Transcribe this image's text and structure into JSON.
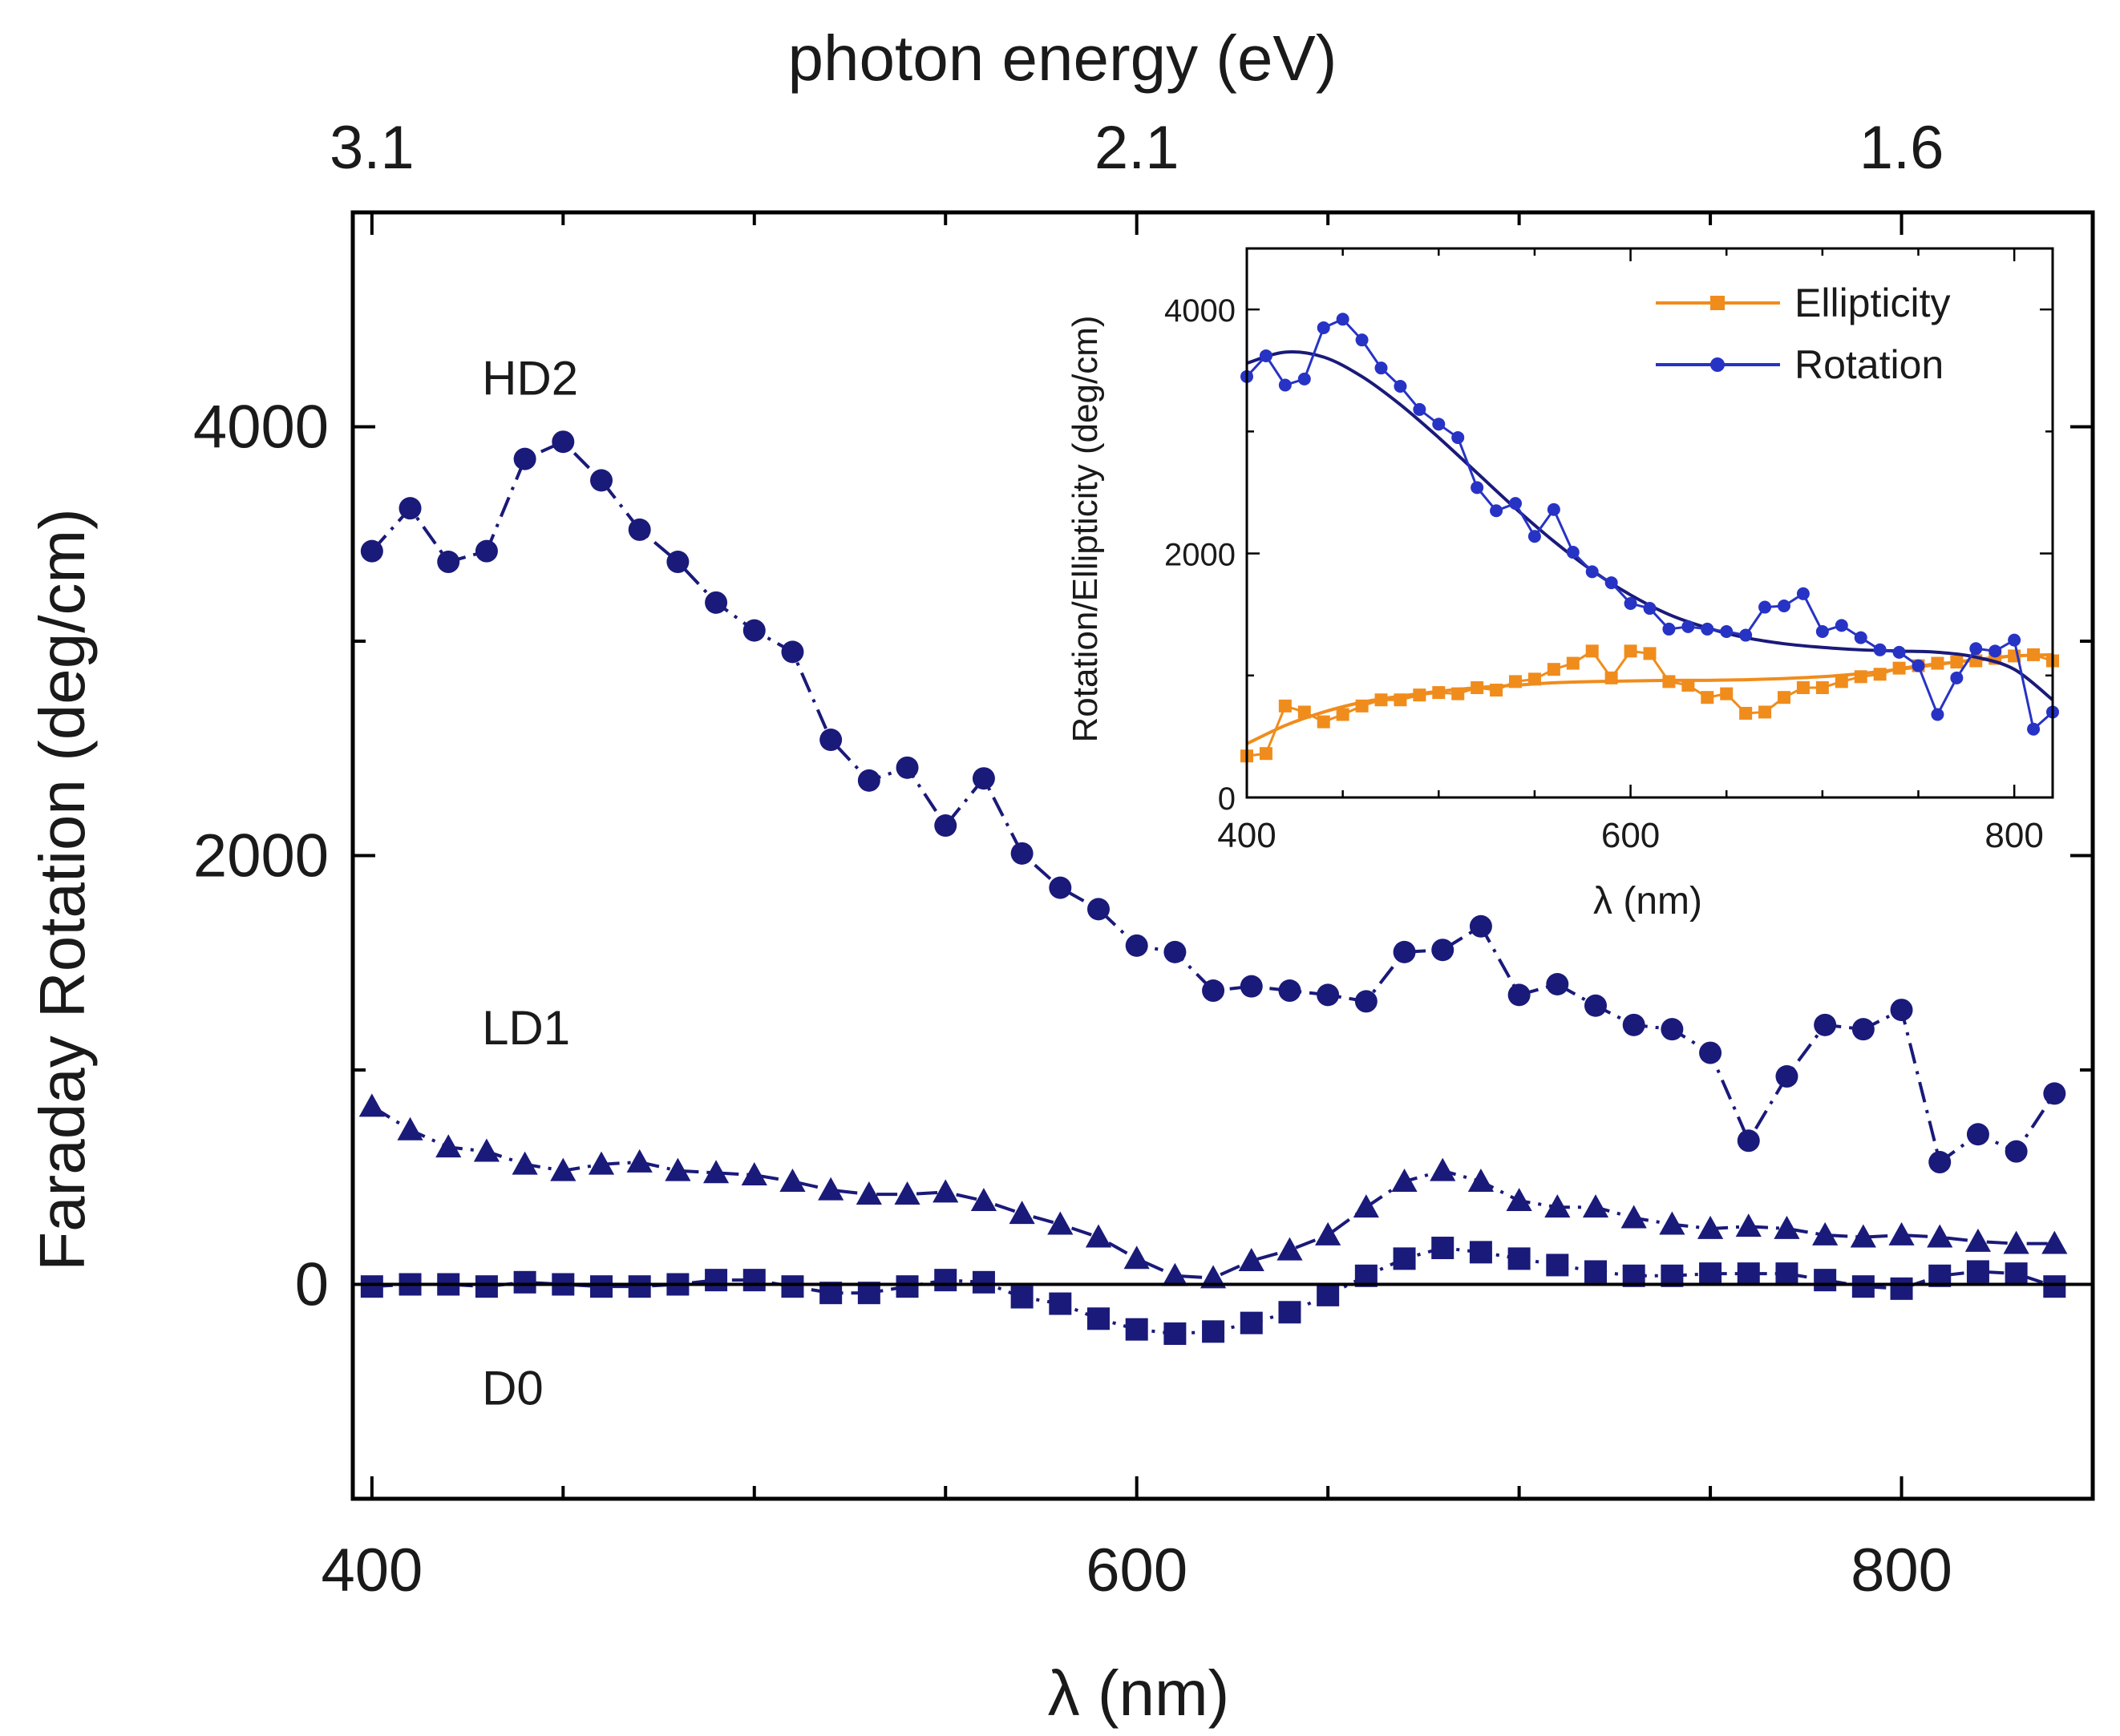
{
  "chart_data": [
    {
      "type": "scatter",
      "title": "",
      "xlabel": "λ (nm)",
      "ylabel": "Faraday Rotation (deg/cm)",
      "x2label": "photon energy (eV)",
      "xlim": [
        395,
        850
      ],
      "ylim": [
        -1000,
        5000
      ],
      "xticks": [
        400,
        600,
        800
      ],
      "yticks": [
        0,
        2000,
        4000
      ],
      "x2ticks": [
        {
          "label": "3.1",
          "x": 400
        },
        {
          "label": "2.1",
          "x": 600
        },
        {
          "label": "1.6",
          "x": 800
        }
      ],
      "zero_line": true,
      "x": [
        400,
        410,
        420,
        430,
        440,
        450,
        460,
        470,
        480,
        490,
        500,
        510,
        520,
        530,
        540,
        550,
        560,
        570,
        580,
        590,
        600,
        610,
        620,
        630,
        640,
        650,
        660,
        670,
        680,
        690,
        700,
        710,
        720,
        730,
        740,
        750,
        760,
        770,
        780,
        790,
        800,
        810,
        820,
        830,
        840
      ],
      "series": [
        {
          "name": "HD2",
          "marker": "circle",
          "line": "dash-dot",
          "color": "#1a1a7a",
          "label_x": 425,
          "label_y": 4150,
          "values": [
            3420,
            3620,
            3370,
            3420,
            3850,
            3930,
            3750,
            3520,
            3370,
            3180,
            3050,
            2950,
            2540,
            2350,
            2410,
            2140,
            2360,
            2010,
            1850,
            1750,
            1580,
            1550,
            1370,
            1390,
            1370,
            1350,
            1320,
            1550,
            1560,
            1670,
            1350,
            1400,
            1300,
            1210,
            1190,
            1080,
            670,
            970,
            1210,
            1190,
            1280,
            570,
            700,
            620,
            890
          ]
        },
        {
          "name": "LD1",
          "marker": "triangle",
          "line": "dash-dot",
          "color": "#1a1a7a",
          "label_x": 425,
          "label_y": 1120,
          "values": [
            830,
            720,
            640,
            620,
            560,
            530,
            560,
            570,
            530,
            520,
            510,
            480,
            440,
            420,
            420,
            430,
            390,
            330,
            280,
            220,
            120,
            40,
            30,
            110,
            160,
            230,
            360,
            480,
            530,
            480,
            390,
            360,
            360,
            310,
            280,
            260,
            270,
            260,
            230,
            220,
            230,
            220,
            200,
            190,
            190
          ]
        },
        {
          "name": "D0",
          "marker": "square",
          "line": "dash-dot",
          "color": "#1a1a7a",
          "label_x": 425,
          "label_y": -560,
          "values": [
            -10,
            0,
            0,
            -10,
            10,
            0,
            -10,
            -10,
            0,
            20,
            20,
            -10,
            -40,
            -40,
            -10,
            20,
            10,
            -60,
            -90,
            -160,
            -210,
            -230,
            -220,
            -180,
            -130,
            -50,
            40,
            120,
            170,
            150,
            120,
            90,
            60,
            40,
            40,
            50,
            50,
            50,
            20,
            -10,
            -20,
            40,
            60,
            50,
            -10
          ]
        }
      ]
    },
    {
      "type": "line",
      "title": "",
      "xlabel": "λ (nm)",
      "ylabel": "Rotation/Ellipticity (deg/cm)",
      "xlim": [
        400,
        820
      ],
      "ylim": [
        0,
        4500
      ],
      "xticks": [
        400,
        600,
        800
      ],
      "yticks": [
        0,
        2000,
        4000
      ],
      "legend": "top-right",
      "series": [
        {
          "name": "Ellipticity",
          "color": "#f08c1c",
          "marker": "square",
          "x": [
            400,
            410,
            420,
            430,
            440,
            450,
            460,
            470,
            480,
            490,
            500,
            510,
            520,
            530,
            540,
            550,
            560,
            570,
            580,
            590,
            600,
            610,
            620,
            630,
            640,
            650,
            660,
            670,
            680,
            690,
            700,
            710,
            720,
            730,
            740,
            750,
            760,
            770,
            780,
            790,
            800,
            810,
            820
          ],
          "values": [
            340,
            360,
            750,
            700,
            620,
            680,
            750,
            800,
            800,
            840,
            860,
            850,
            900,
            880,
            950,
            970,
            1050,
            1100,
            1200,
            980,
            1200,
            1180,
            950,
            920,
            820,
            850,
            690,
            700,
            820,
            900,
            900,
            950,
            990,
            1010,
            1060,
            1080,
            1100,
            1110,
            1120,
            1140,
            1160,
            1170,
            1120
          ],
          "fit_x": [
            400,
            420,
            440,
            460,
            480,
            500,
            520,
            540,
            560,
            580,
            600,
            620,
            640,
            660,
            680,
            700,
            720,
            740,
            760,
            780,
            800,
            820
          ],
          "fit_values": [
            440,
            590,
            700,
            780,
            830,
            870,
            900,
            920,
            940,
            950,
            955,
            960,
            960,
            965,
            975,
            990,
            1015,
            1050,
            1090,
            1130,
            1160,
            1170
          ]
        },
        {
          "name": "Rotation",
          "color": "#2733c4",
          "marker": "circle",
          "x": [
            400,
            410,
            420,
            430,
            440,
            450,
            460,
            470,
            480,
            490,
            500,
            510,
            520,
            530,
            540,
            550,
            560,
            570,
            580,
            590,
            600,
            610,
            620,
            630,
            640,
            650,
            660,
            670,
            680,
            690,
            700,
            710,
            720,
            730,
            740,
            750,
            760,
            770,
            780,
            790,
            800,
            810,
            820
          ],
          "values": [
            3450,
            3620,
            3380,
            3430,
            3850,
            3920,
            3750,
            3520,
            3370,
            3180,
            3060,
            2950,
            2540,
            2350,
            2410,
            2140,
            2360,
            2010,
            1850,
            1760,
            1590,
            1550,
            1380,
            1400,
            1380,
            1360,
            1330,
            1560,
            1570,
            1670,
            1360,
            1410,
            1310,
            1210,
            1190,
            1080,
            680,
            980,
            1220,
            1200,
            1290,
            560,
            700
          ],
          "fit_x": [
            400,
            420,
            440,
            460,
            480,
            500,
            520,
            540,
            560,
            580,
            600,
            620,
            640,
            660,
            680,
            700,
            720,
            740,
            760,
            780,
            800,
            820
          ],
          "fit_values": [
            3560,
            3650,
            3610,
            3450,
            3220,
            2950,
            2660,
            2370,
            2100,
            1860,
            1660,
            1500,
            1390,
            1310,
            1260,
            1230,
            1210,
            1200,
            1190,
            1150,
            1050,
            800
          ]
        }
      ]
    }
  ]
}
